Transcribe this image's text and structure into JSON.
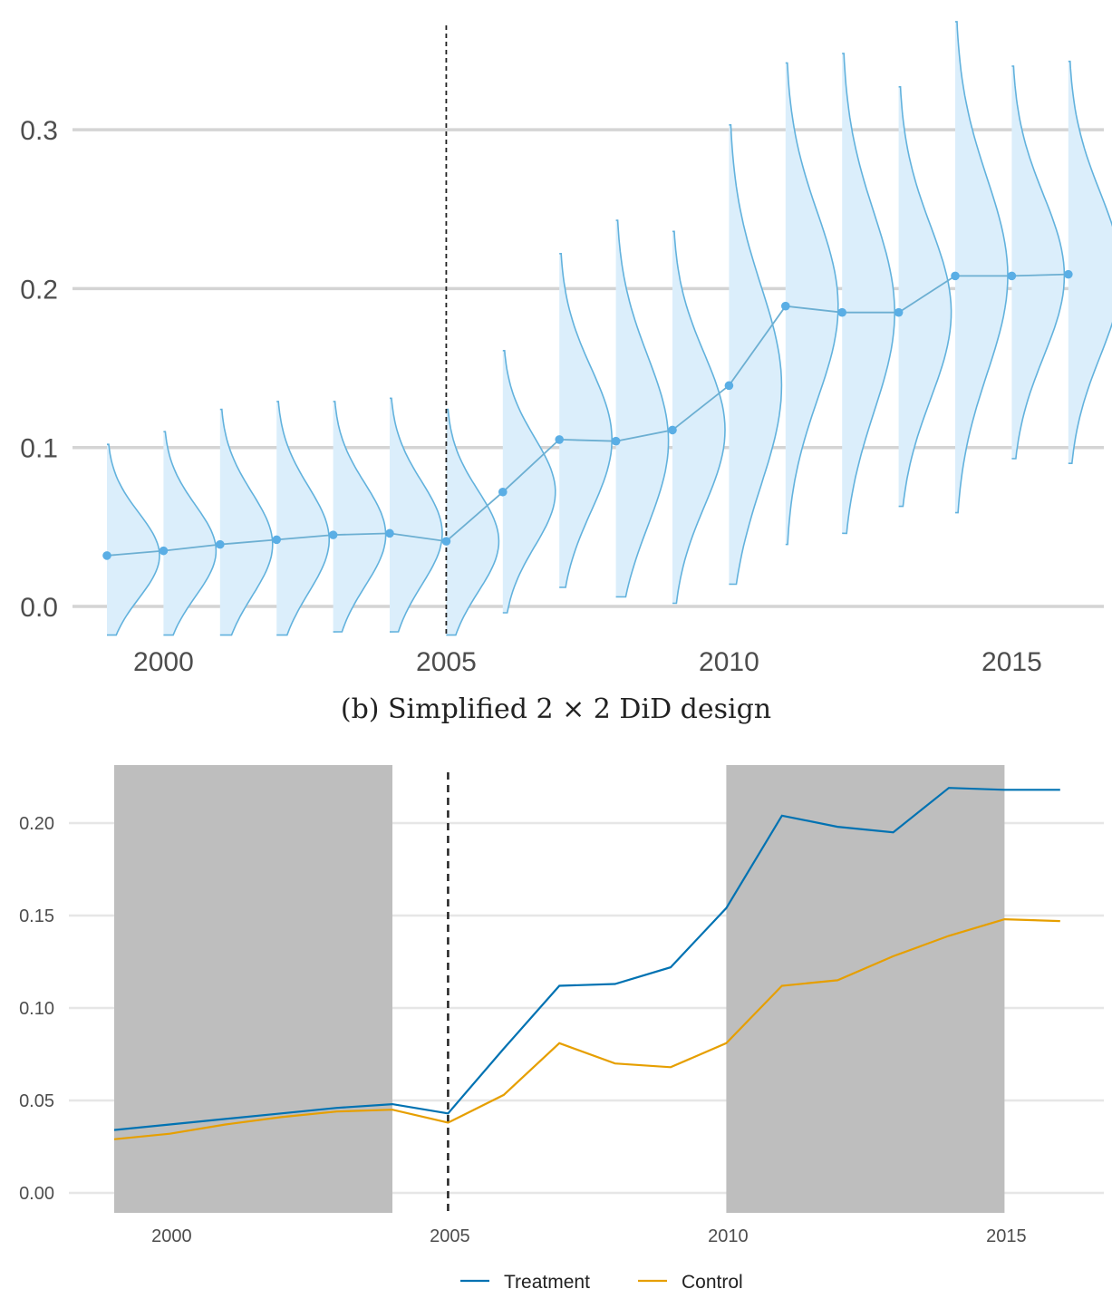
{
  "caption": "(b) Simplified 2 × 2 DiD design",
  "chart_data": [
    {
      "type": "line",
      "subtype": "point estimates with density (half-eye) distributions",
      "x": [
        1999,
        2000,
        2001,
        2002,
        2003,
        2004,
        2005,
        2006,
        2007,
        2008,
        2009,
        2010,
        2011,
        2012,
        2013,
        2014,
        2015,
        2016
      ],
      "series": [
        {
          "values": [
            0.032,
            0.035,
            0.039,
            0.042,
            0.045,
            0.046,
            0.041,
            0.072,
            0.105,
            0.104,
            0.111,
            0.139,
            0.189,
            0.185,
            0.185,
            0.208,
            0.208,
            0.209
          ]
        }
      ],
      "distribution_ranges": [
        [
          -0.018,
          0.102
        ],
        [
          -0.018,
          0.11
        ],
        [
          -0.018,
          0.124
        ],
        [
          -0.018,
          0.129
        ],
        [
          -0.016,
          0.129
        ],
        [
          -0.016,
          0.131
        ],
        [
          -0.018,
          0.124
        ],
        [
          -0.004,
          0.161
        ],
        [
          0.012,
          0.222
        ],
        [
          0.006,
          0.243
        ],
        [
          0.002,
          0.236
        ],
        [
          0.014,
          0.303
        ],
        [
          0.039,
          0.342
        ],
        [
          0.046,
          0.348
        ],
        [
          0.063,
          0.327
        ],
        [
          0.059,
          0.368
        ],
        [
          0.093,
          0.34
        ],
        [
          0.09,
          0.343
        ]
      ],
      "vline_x": 2005,
      "xticks": [
        "2000",
        "2005",
        "2010",
        "2015"
      ],
      "yticks": [
        "0.0",
        "0.1",
        "0.2",
        "0.3"
      ],
      "xlim": [
        1998.5,
        2016.6
      ],
      "ylim": [
        -0.018,
        0.37
      ],
      "grid": true,
      "colors": {
        "line": "#6cafd2",
        "point": "#5aaee5",
        "density_fill": "#dbeefb",
        "density_stroke": "#62b2dd",
        "vline": "#222222"
      }
    },
    {
      "type": "line",
      "x": [
        1999,
        2000,
        2001,
        2002,
        2003,
        2004,
        2005,
        2006,
        2007,
        2008,
        2009,
        2010,
        2011,
        2012,
        2013,
        2014,
        2015,
        2016
      ],
      "series": [
        {
          "name": "Treatment",
          "color": "#0072b2",
          "values": [
            0.034,
            0.037,
            0.04,
            0.043,
            0.046,
            0.048,
            0.043,
            0.078,
            0.112,
            0.113,
            0.122,
            0.154,
            0.204,
            0.198,
            0.195,
            0.219,
            0.218,
            0.218
          ]
        },
        {
          "name": "Control",
          "color": "#e69f00",
          "values": [
            0.029,
            0.032,
            0.037,
            0.041,
            0.044,
            0.045,
            0.038,
            0.053,
            0.081,
            0.07,
            0.068,
            0.081,
            0.112,
            0.115,
            0.128,
            0.139,
            0.148,
            0.147
          ]
        }
      ],
      "shaded_periods": [
        [
          1999,
          2004
        ],
        [
          2010,
          2015
        ]
      ],
      "vline_x": 2005,
      "xticks": [
        "2000",
        "2005",
        "2010",
        "2015"
      ],
      "yticks": [
        "0.00",
        "0.05",
        "0.10",
        "0.15",
        "0.20"
      ],
      "xlim": [
        1997.8,
        2017.5
      ],
      "ylim": [
        -0.01,
        0.23
      ],
      "legend_position": "bottom",
      "grid": true,
      "colors": {
        "shade": "#bebebe",
        "vline": "#222222"
      }
    }
  ]
}
